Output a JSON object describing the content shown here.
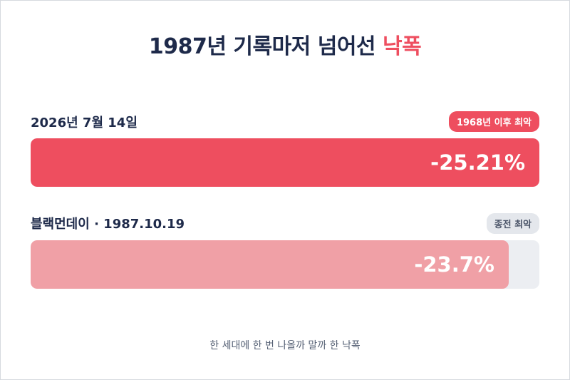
{
  "title": {
    "main": "1987년 기록마저 넘어선",
    "accent": "낙폭"
  },
  "chart_data": {
    "type": "bar",
    "orientation": "horizontal",
    "unit": "%",
    "xlim": [
      0,
      -25.21
    ],
    "bars": [
      {
        "label": "2026년 7월 14일",
        "value": -25.21,
        "value_label": "-25.21%",
        "badge": "1968년 이후 최악",
        "color": "#ee4e5f"
      },
      {
        "label": "블랙먼데이 · 1987.10.19",
        "value": -23.7,
        "value_label": "-23.7%",
        "badge": "종전 최악",
        "color": "#f0a0a6"
      }
    ]
  },
  "footer": "한 세대에 한 번 나올까 말까 한 낙폭",
  "colors": {
    "title": "#1e2a4a",
    "accent": "#ee4e5f",
    "track": "#eceef2"
  }
}
